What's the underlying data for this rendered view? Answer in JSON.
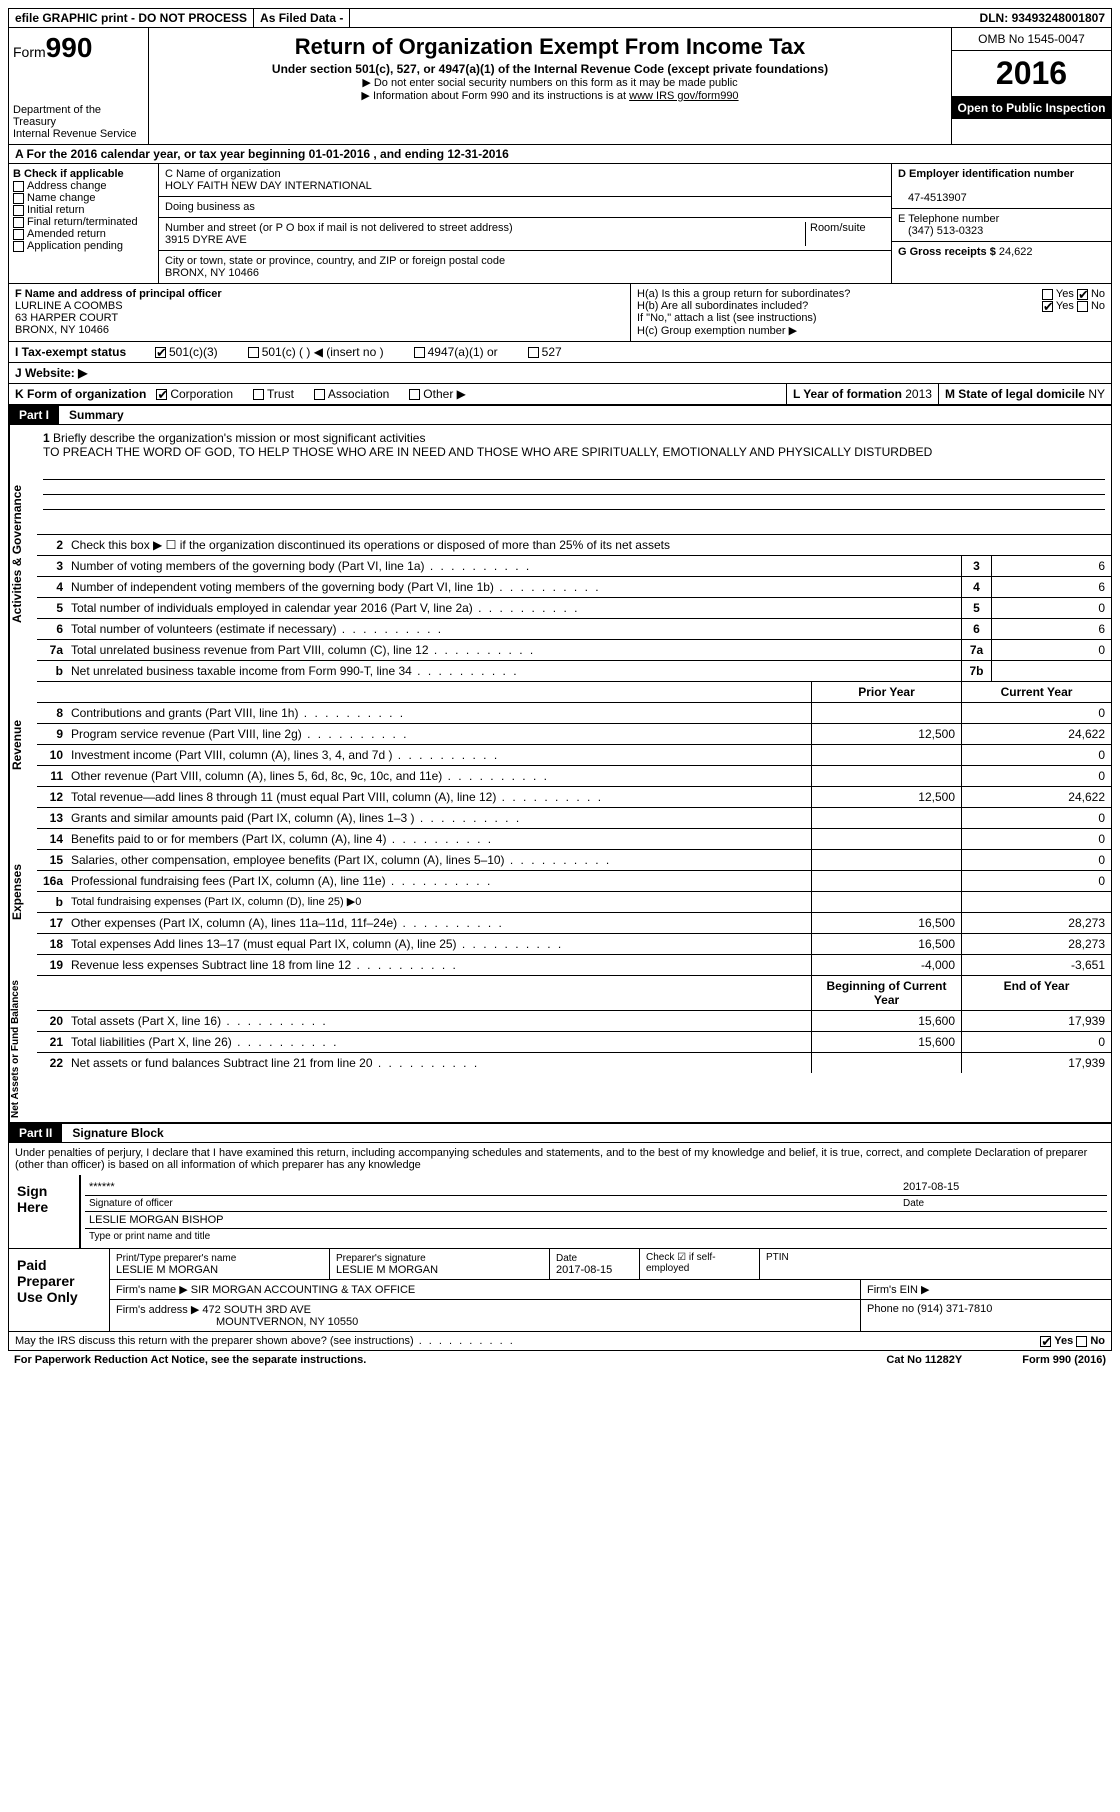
{
  "topbar": {
    "efile": "efile GRAPHIC print - DO NOT PROCESS",
    "asfiled": "As Filed Data -",
    "dln_label": "DLN:",
    "dln": "93493248001807"
  },
  "header": {
    "form_label": "Form",
    "form_num": "990",
    "dept1": "Department of the Treasury",
    "dept2": "Internal Revenue Service",
    "title": "Return of Organization Exempt From Income Tax",
    "subtitle": "Under section 501(c), 527, or 4947(a)(1) of the Internal Revenue Code (except private foundations)",
    "note1": "▶ Do not enter social security numbers on this form as it may be made public",
    "note2": "▶ Information about Form 990 and its instructions is at",
    "note2_link": "www IRS gov/form990",
    "omb": "OMB No  1545-0047",
    "year": "2016",
    "open": "Open to Public Inspection"
  },
  "rowA": "A  For the 2016 calendar year, or tax year beginning 01-01-2016   , and ending 12-31-2016",
  "secB": {
    "head": "B Check if applicable",
    "items": [
      "Address change",
      "Name change",
      "Initial return",
      "Final return/terminated",
      "Amended return",
      "Application pending"
    ]
  },
  "secC": {
    "name_label": "C Name of organization",
    "name": "HOLY FAITH NEW DAY INTERNATIONAL",
    "dba_label": "Doing business as",
    "addr_label": "Number and street (or P O  box if mail is not delivered to street address)",
    "room_label": "Room/suite",
    "addr": "3915 DYRE AVE",
    "city_label": "City or town, state or province, country, and ZIP or foreign postal code",
    "city": "BRONX, NY  10466"
  },
  "secD": {
    "ein_label": "D Employer identification number",
    "ein": "47-4513907"
  },
  "secE": {
    "tel_label": "E Telephone number",
    "tel": "(347) 513-0323"
  },
  "secG": {
    "gross_label": "G Gross receipts $",
    "gross": "24,622"
  },
  "secF": {
    "label": "F  Name and address of principal officer",
    "name": "LURLINE A COOMBS",
    "addr1": "63 HARPER COURT",
    "addr2": "BRONX, NY  10466"
  },
  "secH": {
    "ha": "H(a)  Is this a group return for subordinates?",
    "hb": "H(b)  Are all subordinates included?",
    "hb_note": "If \"No,\" attach a list  (see instructions)",
    "hc": "H(c)  Group exemption number ▶",
    "yes": "Yes",
    "no": "No"
  },
  "secI": {
    "label": "I  Tax-exempt status",
    "opts": [
      "501(c)(3)",
      "501(c) (  ) ◀ (insert no )",
      "4947(a)(1) or",
      "527"
    ]
  },
  "secJ": "J  Website: ▶",
  "secK": {
    "label": "K Form of organization",
    "opts": [
      "Corporation",
      "Trust",
      "Association",
      "Other ▶"
    ]
  },
  "secL": {
    "label": "L Year of formation",
    "val": "2013"
  },
  "secM": {
    "label": "M State of legal domicile",
    "val": "NY"
  },
  "part1": {
    "tag": "Part I",
    "label": "Summary"
  },
  "mission": {
    "num": "1",
    "label": "Briefly describe the organization's mission or most significant activities",
    "text": "TO PREACH THE WORD OF GOD, TO HELP THOSE WHO ARE IN NEED AND THOSE WHO ARE SPIRITUALLY, EMOTIONALLY AND PHYSICALLY DISTURDBED"
  },
  "line2": "Check this box ▶ ☐ if the organization discontinued its operations or disposed of more than 25% of its net assets",
  "gov_lines": [
    {
      "n": "3",
      "d": "Number of voting members of the governing body (Part VI, line 1a)",
      "b": "3",
      "v": "6"
    },
    {
      "n": "4",
      "d": "Number of independent voting members of the governing body (Part VI, line 1b)",
      "b": "4",
      "v": "6"
    },
    {
      "n": "5",
      "d": "Total number of individuals employed in calendar year 2016 (Part V, line 2a)",
      "b": "5",
      "v": "0"
    },
    {
      "n": "6",
      "d": "Total number of volunteers (estimate if necessary)",
      "b": "6",
      "v": "6"
    },
    {
      "n": "7a",
      "d": "Total unrelated business revenue from Part VIII, column (C), line 12",
      "b": "7a",
      "v": "0"
    },
    {
      "n": "b",
      "d": "Net unrelated business taxable income from Form 990-T, line 34",
      "b": "7b",
      "v": ""
    }
  ],
  "heads2": {
    "prior": "Prior Year",
    "current": "Current Year"
  },
  "vlabels": {
    "gov": "Activities & Governance",
    "rev": "Revenue",
    "exp": "Expenses",
    "net": "Net Assets or Fund Balances"
  },
  "rev_lines": [
    {
      "n": "8",
      "d": "Contributions and grants (Part VIII, line 1h)",
      "c1": "",
      "c2": "0"
    },
    {
      "n": "9",
      "d": "Program service revenue (Part VIII, line 2g)",
      "c1": "12,500",
      "c2": "24,622"
    },
    {
      "n": "10",
      "d": "Investment income (Part VIII, column (A), lines 3, 4, and 7d )",
      "c1": "",
      "c2": "0"
    },
    {
      "n": "11",
      "d": "Other revenue (Part VIII, column (A), lines 5, 6d, 8c, 9c, 10c, and 11e)",
      "c1": "",
      "c2": "0"
    },
    {
      "n": "12",
      "d": "Total revenue—add lines 8 through 11 (must equal Part VIII, column (A), line 12)",
      "c1": "12,500",
      "c2": "24,622"
    }
  ],
  "exp_lines": [
    {
      "n": "13",
      "d": "Grants and similar amounts paid (Part IX, column (A), lines 1–3 )",
      "c1": "",
      "c2": "0"
    },
    {
      "n": "14",
      "d": "Benefits paid to or for members (Part IX, column (A), line 4)",
      "c1": "",
      "c2": "0"
    },
    {
      "n": "15",
      "d": "Salaries, other compensation, employee benefits (Part IX, column (A), lines 5–10)",
      "c1": "",
      "c2": "0"
    },
    {
      "n": "16a",
      "d": "Professional fundraising fees (Part IX, column (A), line 11e)",
      "c1": "",
      "c2": "0"
    },
    {
      "n": "b",
      "d": "Total fundraising expenses (Part IX, column (D), line 25) ▶0",
      "c1": "SHADE",
      "c2": "SHADE"
    },
    {
      "n": "17",
      "d": "Other expenses (Part IX, column (A), lines 11a–11d, 11f–24e)",
      "c1": "16,500",
      "c2": "28,273"
    },
    {
      "n": "18",
      "d": "Total expenses  Add lines 13–17 (must equal Part IX, column (A), line 25)",
      "c1": "16,500",
      "c2": "28,273"
    },
    {
      "n": "19",
      "d": "Revenue less expenses  Subtract line 18 from line 12",
      "c1": "-4,000",
      "c2": "-3,651"
    }
  ],
  "heads3": {
    "begin": "Beginning of Current Year",
    "end": "End of Year"
  },
  "net_lines": [
    {
      "n": "20",
      "d": "Total assets (Part X, line 16)",
      "c1": "15,600",
      "c2": "17,939"
    },
    {
      "n": "21",
      "d": "Total liabilities (Part X, line 26)",
      "c1": "15,600",
      "c2": "0"
    },
    {
      "n": "22",
      "d": "Net assets or fund balances  Subtract line 21 from line 20",
      "c1": "",
      "c2": "17,939"
    }
  ],
  "part2": {
    "tag": "Part II",
    "label": "Signature Block"
  },
  "sig_text": "Under penalties of perjury, I declare that I have examined this return, including accompanying schedules and statements, and to the best of my knowledge and belief, it is true, correct, and complete  Declaration of preparer (other than officer) is based on all information of which preparer has any knowledge",
  "sign": {
    "label": "Sign Here",
    "stars": "******",
    "sig_label": "Signature of officer",
    "date_label": "Date",
    "date": "2017-08-15",
    "name": "LESLIE MORGAN BISHOP",
    "name_label": "Type or print name and title"
  },
  "prep": {
    "label": "Paid Preparer Use Only",
    "pt_name_label": "Print/Type preparer's name",
    "pt_name": "LESLIE M MORGAN",
    "psig_label": "Preparer's signature",
    "psig": "LESLIE M MORGAN",
    "pdate_label": "Date",
    "pdate": "2017-08-15",
    "self_label": "Check ☑ if self-employed",
    "ptin_label": "PTIN",
    "firm_name_label": "Firm's name   ▶",
    "firm_name": "SIR MORGAN ACCOUNTING & TAX OFFICE",
    "firm_ein_label": "Firm's EIN ▶",
    "firm_addr_label": "Firm's address ▶",
    "firm_addr": "472 SOUTH 3RD AVE",
    "firm_city": "MOUNTVERNON, NY  10550",
    "phone_label": "Phone no",
    "phone": "(914) 371-7810"
  },
  "discuss": "May the IRS discuss this return with the preparer shown above? (see instructions)",
  "footer": {
    "pra": "For Paperwork Reduction Act Notice, see the separate instructions.",
    "cat": "Cat No 11282Y",
    "form": "Form 990 (2016)"
  }
}
